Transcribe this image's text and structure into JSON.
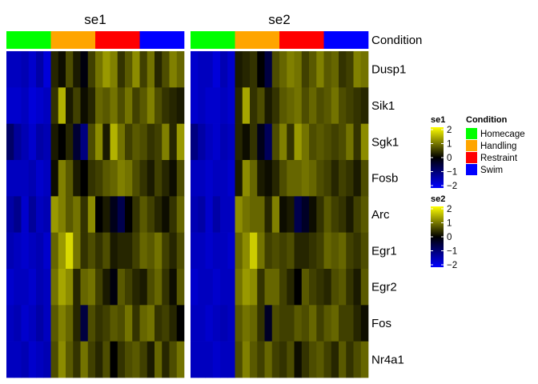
{
  "chart_data": {
    "type": "heatmap",
    "panels": [
      {
        "title": "se1"
      },
      {
        "title": "se2"
      }
    ],
    "annotation": {
      "label": "Condition",
      "groups": [
        {
          "name": "Homecage",
          "color": "#00ff00"
        },
        {
          "name": "Handling",
          "color": "#ffa500"
        },
        {
          "name": "Restraint",
          "color": "#ff0000"
        },
        {
          "name": "Swim",
          "color": "#0000ff"
        }
      ],
      "columns_per_group": 6
    },
    "genes": [
      "Dusp1",
      "Sik1",
      "Sgk1",
      "Fosb",
      "Arc",
      "Egr1",
      "Egr2",
      "Fos",
      "Nr4a1"
    ],
    "color_scale": {
      "stops": [
        {
          "value": -2,
          "color": "#0000ff"
        },
        {
          "value": 0,
          "color": "#000000"
        },
        {
          "value": 2,
          "color": "#ffff00"
        }
      ],
      "ticks": [
        2,
        1,
        0,
        -1,
        -2
      ],
      "legends": [
        {
          "title": "se1"
        },
        {
          "title": "se2"
        }
      ]
    },
    "legend": {
      "title": "Condition",
      "placement": "right"
    },
    "matrices": {
      "se1": [
        [
          -1.5,
          -1.5,
          -1.4,
          -1.6,
          -1.3,
          -1.7,
          0.3,
          0.1,
          0.6,
          0.2,
          -0.1,
          0.5,
          0.9,
          1.2,
          1.0,
          0.4,
          0.7,
          1.1,
          0.5,
          0.9,
          0.3,
          0.6,
          1.0,
          0.8
        ],
        [
          -1.6,
          -1.6,
          -1.5,
          -1.7,
          -1.6,
          -1.5,
          0.4,
          1.4,
          0.2,
          0.5,
          0.1,
          0.3,
          0.8,
          0.7,
          0.9,
          0.6,
          0.9,
          0.5,
          0.7,
          1.0,
          0.6,
          0.4,
          0.3,
          0.2
        ],
        [
          -0.8,
          -1.2,
          -1.4,
          -1.6,
          -1.3,
          -1.4,
          0.2,
          0.0,
          0.3,
          -0.4,
          -1.0,
          0.6,
          1.1,
          0.2,
          1.4,
          0.9,
          0.5,
          0.7,
          0.6,
          0.4,
          0.5,
          1.0,
          0.3,
          1.2
        ],
        [
          -1.5,
          -1.5,
          -1.5,
          -1.4,
          -1.6,
          -1.5,
          0.1,
          1.0,
          0.7,
          0.2,
          0.0,
          0.4,
          0.5,
          0.7,
          0.8,
          1.0,
          0.9,
          0.6,
          0.4,
          0.2,
          0.5,
          0.3,
          0.1,
          0.6
        ],
        [
          -1.3,
          -1.1,
          -1.6,
          -1.2,
          -1.5,
          -1.4,
          1.2,
          1.0,
          0.7,
          0.9,
          0.4,
          1.1,
          0.0,
          0.2,
          -0.2,
          -0.6,
          0.0,
          0.4,
          0.7,
          0.5,
          0.3,
          0.1,
          0.4,
          0.8
        ],
        [
          -1.4,
          -1.5,
          -1.6,
          -1.5,
          -1.4,
          -1.6,
          0.8,
          1.2,
          1.7,
          0.9,
          0.4,
          0.6,
          0.4,
          0.6,
          0.2,
          0.3,
          0.3,
          0.5,
          0.8,
          0.7,
          0.9,
          0.5,
          0.3,
          0.6
        ],
        [
          -1.6,
          -1.5,
          -1.5,
          -1.6,
          -1.4,
          -1.5,
          0.9,
          1.3,
          1.1,
          0.3,
          0.8,
          0.9,
          0.5,
          0.2,
          -0.1,
          0.7,
          0.5,
          0.3,
          0.2,
          0.6,
          0.8,
          0.4,
          0.1,
          0.7
        ],
        [
          -1.5,
          -1.4,
          -1.6,
          -1.5,
          -1.3,
          -1.5,
          0.7,
          1.0,
          0.8,
          0.3,
          -0.5,
          0.6,
          0.4,
          0.5,
          0.7,
          0.6,
          0.9,
          0.4,
          0.8,
          0.9,
          0.4,
          0.5,
          0.3,
          0.0
        ],
        [
          -1.5,
          -1.5,
          -1.4,
          -1.6,
          -1.5,
          -1.4,
          0.6,
          1.1,
          0.7,
          0.4,
          0.9,
          0.5,
          0.3,
          0.6,
          0.0,
          0.4,
          0.6,
          0.7,
          0.5,
          0.2,
          0.8,
          0.3,
          0.6,
          0.9
        ]
      ],
      "se2": [
        [
          -1.6,
          -1.5,
          -1.5,
          -1.7,
          -1.4,
          -1.6,
          0.2,
          0.3,
          0.4,
          0.0,
          -0.5,
          0.6,
          0.8,
          1.0,
          0.9,
          0.5,
          0.7,
          1.0,
          0.7,
          0.8,
          0.4,
          0.5,
          1.0,
          0.9
        ],
        [
          -1.6,
          -1.5,
          -1.6,
          -1.6,
          -1.5,
          -1.6,
          0.3,
          1.3,
          0.4,
          0.6,
          0.2,
          0.4,
          0.7,
          0.8,
          0.9,
          0.6,
          0.8,
          0.6,
          0.7,
          0.9,
          0.6,
          0.5,
          0.4,
          0.3
        ],
        [
          -1.0,
          -1.3,
          -1.5,
          -1.6,
          -1.4,
          -1.5,
          0.3,
          0.1,
          0.4,
          -0.2,
          -0.7,
          0.6,
          1.0,
          0.4,
          1.2,
          0.9,
          0.6,
          0.7,
          0.6,
          0.5,
          0.6,
          0.9,
          0.4,
          1.1
        ],
        [
          -1.5,
          -1.5,
          -1.6,
          -1.5,
          -1.5,
          -1.6,
          0.2,
          1.1,
          0.8,
          0.2,
          0.1,
          0.3,
          0.6,
          0.8,
          0.8,
          0.9,
          0.8,
          0.6,
          0.5,
          0.3,
          0.5,
          0.4,
          0.2,
          0.6
        ],
        [
          -1.4,
          -1.3,
          -1.6,
          -1.3,
          -1.5,
          -1.5,
          1.1,
          0.9,
          0.8,
          0.8,
          0.3,
          1.0,
          0.1,
          0.2,
          -0.6,
          -0.3,
          0.1,
          0.4,
          0.7,
          0.5,
          0.4,
          0.2,
          0.5,
          0.7
        ],
        [
          -1.5,
          -1.5,
          -1.6,
          -1.5,
          -1.5,
          -1.6,
          0.8,
          1.1,
          1.6,
          0.9,
          0.5,
          0.6,
          0.5,
          0.6,
          0.3,
          0.3,
          0.4,
          0.5,
          0.8,
          0.7,
          0.8,
          0.5,
          0.4,
          0.6
        ],
        [
          -1.6,
          -1.5,
          -1.5,
          -1.6,
          -1.5,
          -1.5,
          0.9,
          1.2,
          1.1,
          0.4,
          0.8,
          0.8,
          0.5,
          0.3,
          0.0,
          0.7,
          0.5,
          0.4,
          0.3,
          0.6,
          0.7,
          0.4,
          0.2,
          0.7
        ],
        [
          -1.5,
          -1.5,
          -1.6,
          -1.5,
          -1.4,
          -1.5,
          0.7,
          0.9,
          0.8,
          0.4,
          -0.3,
          0.6,
          0.5,
          0.5,
          0.7,
          0.6,
          0.8,
          0.5,
          0.7,
          0.8,
          0.5,
          0.5,
          0.3,
          0.1
        ],
        [
          -1.5,
          -1.5,
          -1.5,
          -1.6,
          -1.5,
          -1.5,
          0.6,
          1.0,
          0.7,
          0.5,
          0.8,
          0.5,
          0.4,
          0.6,
          0.1,
          0.4,
          0.6,
          0.7,
          0.5,
          0.3,
          0.7,
          0.4,
          0.6,
          0.8
        ]
      ]
    }
  }
}
